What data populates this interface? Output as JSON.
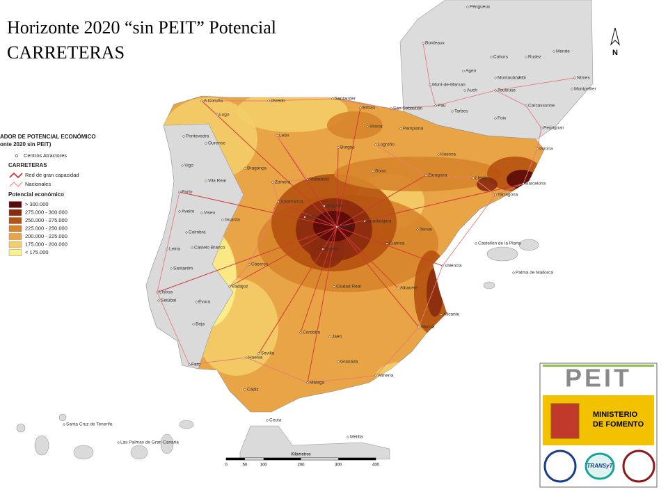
{
  "title": [
    "Horizonte 2020 “sin PEIT” Potencial",
    "CARRETERAS"
  ],
  "north": "N",
  "legend": {
    "heading": [
      "ADOR DE POTENCIAL ECONÓMICO",
      "onte 2020 sin PEIT)"
    ],
    "attractors": "Centros Atractores",
    "roads_title": "CARRETERAS",
    "roads": [
      {
        "label": "Red de gran capacidad",
        "color": "#d23a3a"
      },
      {
        "label": "Nacionales",
        "color": "#e87b7b"
      }
    ],
    "potential_title": "Potencial económico",
    "classes": [
      {
        "label": "> 300.000",
        "color": "#5a0a0a"
      },
      {
        "label": "275.000 - 300.000",
        "color": "#8a2a0e"
      },
      {
        "label": "250.000 - 275.000",
        "color": "#b5520f"
      },
      {
        "label": "225.000 - 250.000",
        "color": "#d8852a"
      },
      {
        "label": "200.000 - 225.000",
        "color": "#e9a445"
      },
      {
        "label": "175.000 - 200.000",
        "color": "#f3cd68"
      },
      {
        "label": "< 175.000",
        "color": "#fbf08a"
      }
    ]
  },
  "cities": [
    "Périgueux",
    "Bordeaux",
    "Rodez",
    "Mende",
    "Agen",
    "Cahors",
    "Montauban",
    "Albi",
    "Nîmes",
    "Mont-de-Marsan",
    "Auch",
    "Toulouse",
    "Montpellier",
    "Santander",
    "Bilbao",
    "San Sebastián",
    "Pau",
    "Tarbes",
    "Carcassonne",
    "Foix",
    "Perpignan",
    "A Coruña",
    "Lugo",
    "Oviedo",
    "León",
    "Burgos",
    "Vitoria",
    "Pamplona",
    "Logroño",
    "Huesca",
    "Girona",
    "Ourense",
    "Pontevedra",
    "Vigo",
    "Zamora",
    "Valladolid",
    "Soria",
    "Zaragoza",
    "Lleida",
    "Barcelona",
    "Tarragona",
    "Bragança",
    "Vila Real",
    "Porto",
    "Aveiro",
    "Viseu",
    "Guarda",
    "Salamanca",
    "Segovia",
    "Ávila",
    "Guadalajara",
    "Madrid",
    "Teruel",
    "Coimbra",
    "Cuenca",
    "Castellón de la Plana",
    "Toledo",
    "Castelo Branco",
    "Leiria",
    "Santarém",
    "Cáceres",
    "Valencia",
    "Palma de Mallorca",
    "Lisboa",
    "Évora",
    "Badajoz",
    "Ciudad Real",
    "Albacete",
    "Setúbal",
    "Beja",
    "Alicante",
    "Murcia",
    "Córdoba",
    "Jaén",
    "Faro",
    "Huelva",
    "Sevilla",
    "Granada",
    "Almería",
    "Málaga",
    "Cádiz",
    "Ceuta",
    "Melilla",
    "Santa Cruz de Tenerife",
    "Las Palmas de Gran Canaria"
  ],
  "scale": {
    "label": "Kilómetros",
    "ticks": [
      0,
      50,
      100,
      200,
      300,
      400
    ]
  },
  "logos": {
    "peit": "PEIT",
    "ministry": [
      "MINISTERIO",
      "DE FOMENTO"
    ],
    "transyt": "TRANSyT"
  }
}
